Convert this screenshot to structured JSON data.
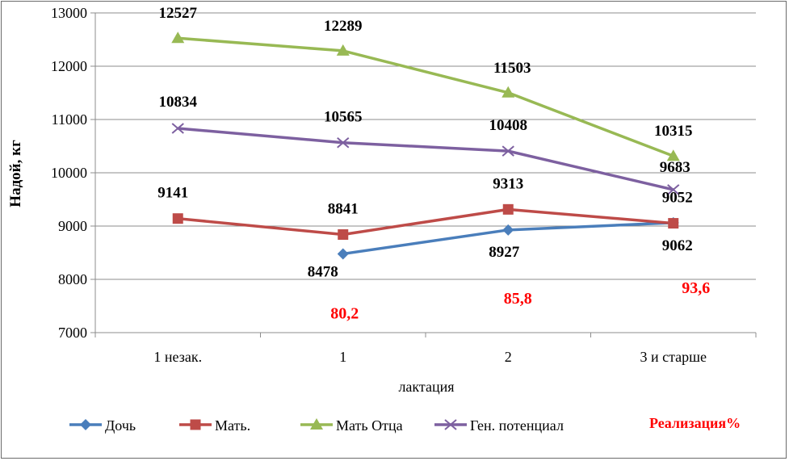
{
  "chart_data": {
    "type": "line",
    "categories": [
      "1 незак.",
      "1",
      "2",
      "3 и старше"
    ],
    "xlabel": "лактация",
    "ylabel": "Надой, кг",
    "ylim": [
      7000,
      13000
    ],
    "ytick_step": 1000,
    "yticks": [
      "7000",
      "8000",
      "9000",
      "10000",
      "11000",
      "12000",
      "13000"
    ],
    "grid": "horizontal",
    "legend_position": "bottom",
    "series": [
      {
        "name": "Дочь",
        "color": "#4a7ebb",
        "marker": "diamond",
        "values": [
          null,
          8478,
          8927,
          9062
        ]
      },
      {
        "name": "Мать.",
        "color": "#be4b48",
        "marker": "square",
        "values": [
          9141,
          8841,
          9313,
          9052
        ]
      },
      {
        "name": "Мать Отца",
        "color": "#98b954",
        "marker": "triangle",
        "values": [
          12527,
          12289,
          11503,
          10315
        ]
      },
      {
        "name": "Ген. потенциал",
        "color": "#7d60a0",
        "marker": "x",
        "values": [
          10834,
          10565,
          10408,
          9683
        ]
      }
    ],
    "realization": {
      "name": "Реализация%",
      "color": "#ff0000",
      "labels": [
        null,
        "80,2",
        "85,8",
        "93,6"
      ]
    }
  }
}
